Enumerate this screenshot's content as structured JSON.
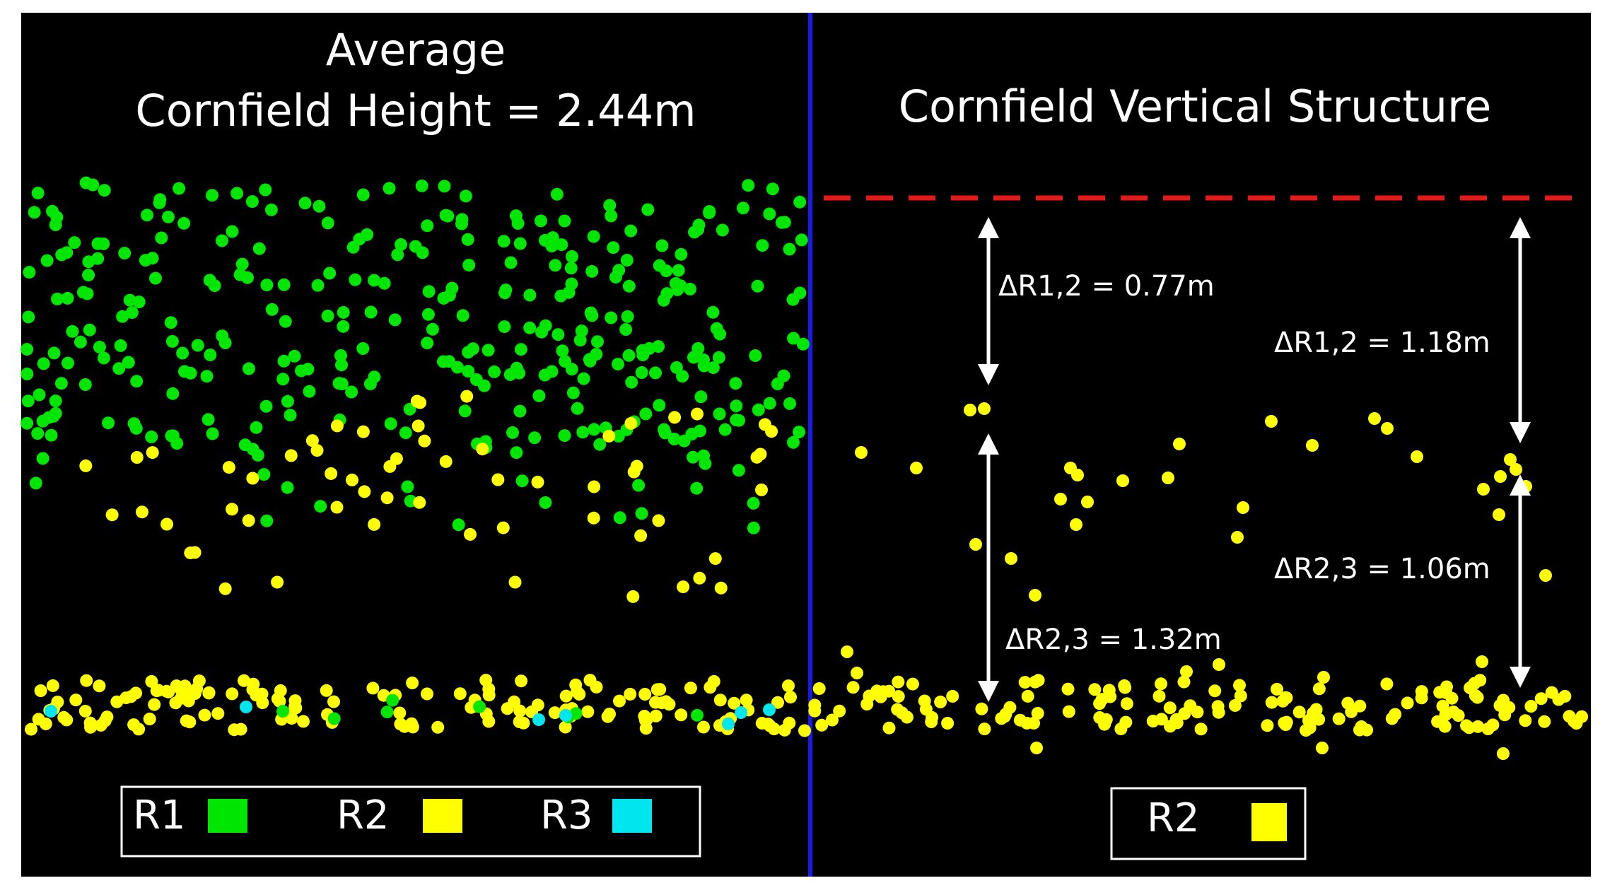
{
  "left_panel": {
    "title_line1": "Average",
    "title_line2": "Cornfield Height = 2.44m"
  },
  "right_panel": {
    "title": "Cornfield Vertical Structure",
    "annotations": [
      "ΔR1,2 = 0.77m",
      "ΔR1,2 = 1.18m",
      "ΔR2,3 = 1.06m",
      "ΔR2,3 = 1.32m"
    ]
  },
  "legend_left": [
    {
      "label": "R1",
      "color": "#00e600"
    },
    {
      "label": "R2",
      "color": "#ffff00"
    },
    {
      "label": "R3",
      "color": "#00e5ee"
    }
  ],
  "legend_right": [
    {
      "label": "R2",
      "color": "#ffff00"
    }
  ],
  "colors": {
    "background": "#000000",
    "divider": "#1a1ae6",
    "reference_line": "#e61919",
    "arrows": "#ffffff",
    "r1": "#00e600",
    "r2": "#ffff00",
    "r3": "#00e5ee"
  }
}
